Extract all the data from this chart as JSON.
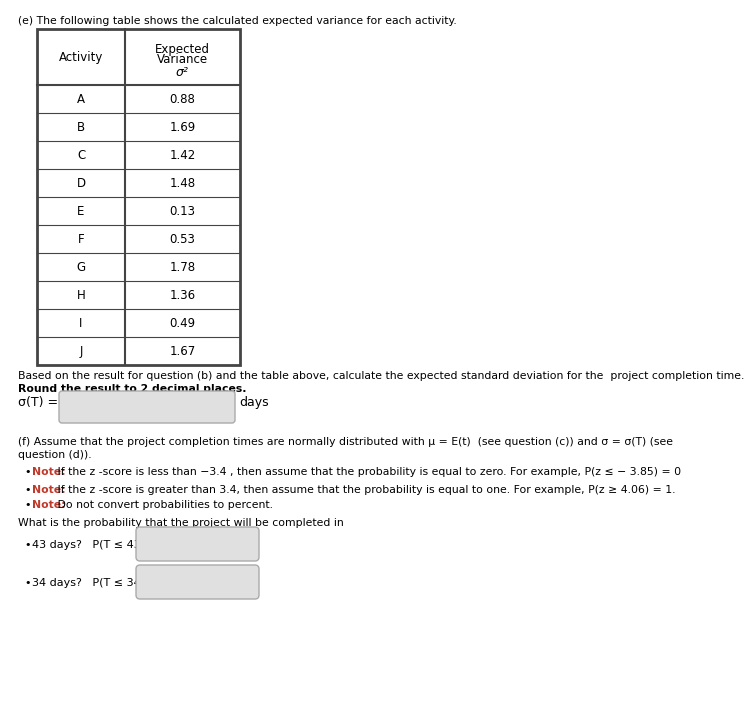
{
  "title": "(e) The following table shows the calculated expected variance for each activity.",
  "activities": [
    "A",
    "B",
    "C",
    "D",
    "E",
    "F",
    "G",
    "H",
    "I",
    "J"
  ],
  "variances": [
    "0.88",
    "1.69",
    "1.42",
    "1.48",
    "0.13",
    "0.53",
    "1.78",
    "1.36",
    "0.49",
    "1.67"
  ],
  "col_header1": "Activity",
  "col_header2_line1": "Expected",
  "col_header2_line2": "Variance",
  "col_header3": "σ²",
  "below_table_text1": "Based on the result for question (b) and the table above, calculate the expected standard deviation for the  project completion time.",
  "below_table_text2": "Round the result to 2 decimal places.",
  "sigma_label": "σ(T) =",
  "sigma_unit": "days",
  "part_f_text1": "(f) Assume that the project completion times are normally distributed with μ = E(t)  (see question (c)) and σ = σ(T) (see",
  "part_f_text2": "question (d)).",
  "note1_bold": "Note:",
  "note1_rest": " If the z -score is less than −3.4 , then assume that the probability is equal to zero. For example, P(z ≤ − 3.85) = 0",
  "note2_bold": "Note:",
  "note2_rest": " If the z -score is greater than 3.4, then assume that the probability is equal to one. For example, P(z ≥ 4.06) = 1.",
  "note3_bold": "Note:",
  "note3_rest": " Do not convert probabilities to percent.",
  "prob_intro": "What is the probability that the project will be completed in",
  "prob1_prefix": "43 days?   P(T ≤ 43) =",
  "prob2_prefix": "34 days?   P(T ≤ 34) =",
  "bg_color": "#ffffff",
  "table_border_color": "#444444",
  "note_color": "#c0392b",
  "input_box_color": "#e0e0e0",
  "input_box_border": "#aaaaaa"
}
